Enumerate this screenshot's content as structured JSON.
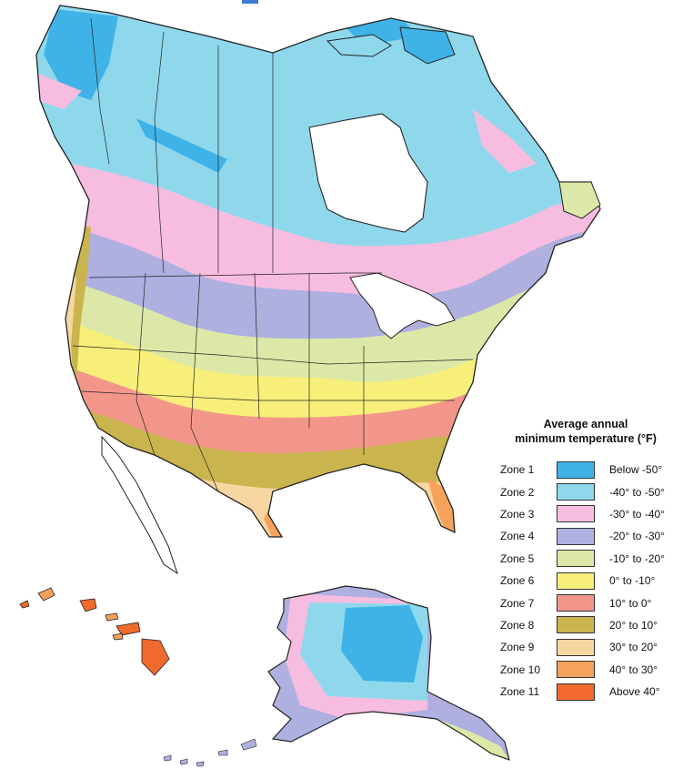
{
  "legend": {
    "title_line1": "Average annual",
    "title_line2": "minimum temperature (°F)",
    "zones": [
      {
        "name": "Zone 1",
        "range": "Below -50°",
        "color": "#3fb3e8"
      },
      {
        "name": "Zone 2",
        "range": "-40° to -50°",
        "color": "#8fd8ec"
      },
      {
        "name": "Zone 3",
        "range": "-30° to -40°",
        "color": "#f7bde0"
      },
      {
        "name": "Zone 4",
        "range": "-20° to -30°",
        "color": "#aeb0e0"
      },
      {
        "name": "Zone 5",
        "range": "-10° to -20°",
        "color": "#dce8a8"
      },
      {
        "name": "Zone 6",
        "range": "0° to -10°",
        "color": "#f7ef7a"
      },
      {
        "name": "Zone 7",
        "range": "10° to 0°",
        "color": "#f3968a"
      },
      {
        "name": "Zone 8",
        "range": "20° to 10°",
        "color": "#c9b44e"
      },
      {
        "name": "Zone 9",
        "range": "30° to 20°",
        "color": "#f7d6a2"
      },
      {
        "name": "Zone 10",
        "range": "40° to 30°",
        "color": "#f5a25c"
      },
      {
        "name": "Zone 11",
        "range": "Above 40°",
        "color": "#ef6a2c"
      }
    ]
  },
  "colors": {
    "water": "#ffffff",
    "border_line": "#222222",
    "top_accent": "#3c7bd0"
  }
}
